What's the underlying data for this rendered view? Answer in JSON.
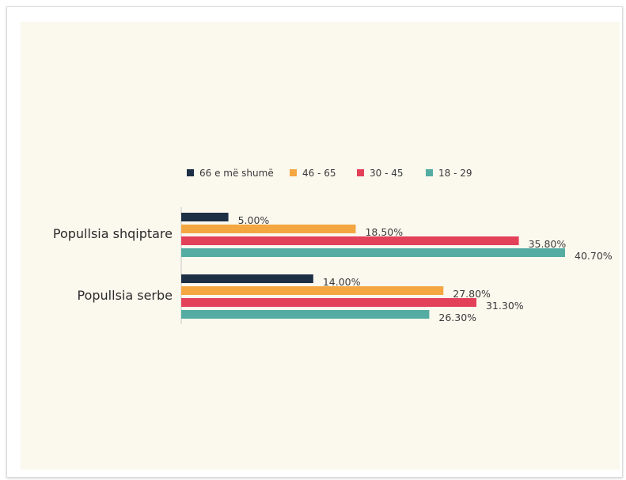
{
  "chart_data": {
    "type": "bar",
    "orientation": "horizontal",
    "categories": [
      "Popullsia shqiptare",
      "Popullsia serbe"
    ],
    "series": [
      {
        "name": "66 e më shumë",
        "color": "#1c2f45",
        "values": [
          5.0,
          14.0
        ],
        "labels": [
          "5.00%",
          "14.00%"
        ]
      },
      {
        "name": "46 - 65",
        "color": "#f4a640",
        "values": [
          18.5,
          27.8
        ],
        "labels": [
          "18.50%",
          "27.80%"
        ]
      },
      {
        "name": "30 - 45",
        "color": "#e3405a",
        "values": [
          35.8,
          31.3
        ],
        "labels": [
          "35.80%",
          "31.30%"
        ]
      },
      {
        "name": "18 - 29",
        "color": "#54aca2",
        "values": [
          40.7,
          26.3
        ],
        "labels": [
          "40.70%",
          "26.30%"
        ]
      }
    ],
    "xlim": [
      0,
      40.7
    ],
    "legend_position": "top",
    "grid": false
  }
}
